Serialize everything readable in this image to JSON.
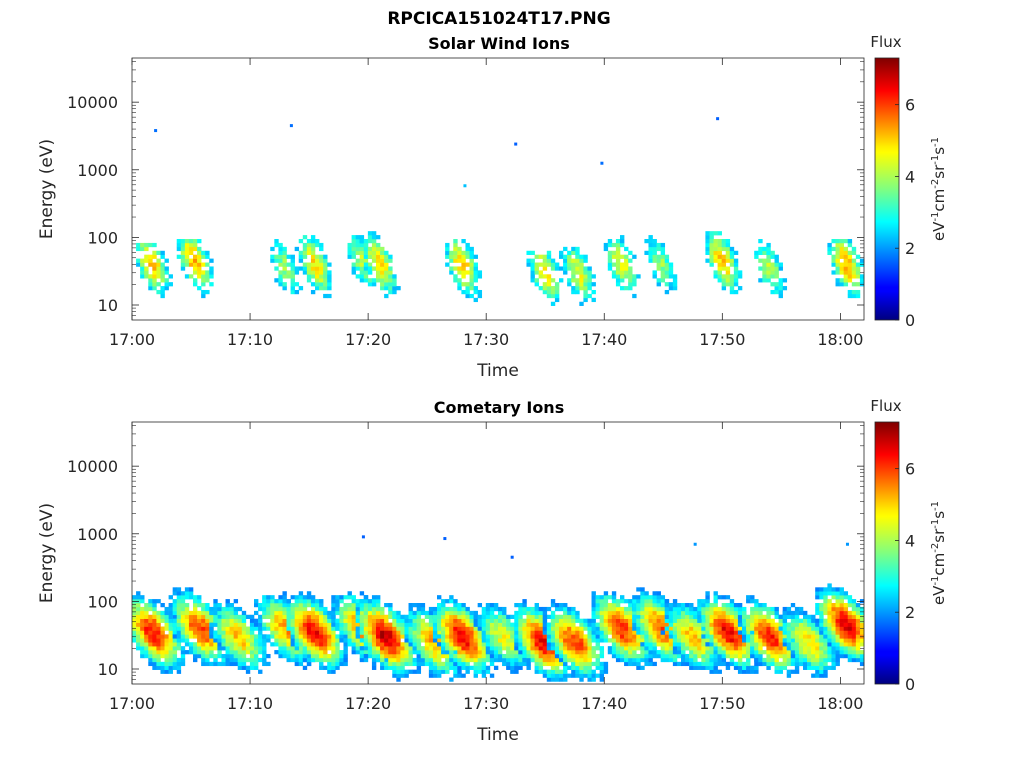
{
  "figure_title": "RPCICA151024T17.PNG",
  "colors": {
    "axes": "#262626",
    "colormap": "jet"
  },
  "chart_data": [
    {
      "type": "heatmap",
      "title": "Solar Wind Ions",
      "xlabel": "Time",
      "ylabel": "Energy (eV)",
      "yscale": "log",
      "ylim": [
        6,
        45000
      ],
      "xlim": [
        "17:00",
        "18:02"
      ],
      "xticks": [
        "17:00",
        "17:10",
        "17:20",
        "17:30",
        "17:40",
        "17:50",
        "18:00"
      ],
      "yticks": [
        "10",
        "100",
        "1000",
        "10000"
      ],
      "colorbar": {
        "label": "Flux",
        "unit": "eV-1cm-2sr-1s-1",
        "range": [
          0,
          7.3
        ],
        "ticks": [
          "0",
          "2",
          "4",
          "6"
        ]
      },
      "bursts": [
        {
          "t": 1.7,
          "e": 40,
          "peak": 5.0,
          "emin": 7,
          "emax": 80
        },
        {
          "t": 5.3,
          "e": 45,
          "peak": 5.2,
          "emin": 12,
          "emax": 90
        },
        {
          "t": 13.0,
          "e": 35,
          "peak": 3.8,
          "emin": 8,
          "emax": 120
        },
        {
          "t": 15.5,
          "e": 40,
          "peak": 4.8,
          "emin": 7,
          "emax": 110
        },
        {
          "t": 19.5,
          "e": 45,
          "peak": 4.0,
          "emin": 12,
          "emax": 200
        },
        {
          "t": 21.0,
          "e": 40,
          "peak": 4.8,
          "emin": 8,
          "emax": 120
        },
        {
          "t": 28.0,
          "e": 38,
          "peak": 5.0,
          "emin": 7,
          "emax": 110
        },
        {
          "t": 35.0,
          "e": 30,
          "peak": 4.8,
          "emin": 8,
          "emax": 60
        },
        {
          "t": 37.8,
          "e": 30,
          "peak": 4.4,
          "emin": 8,
          "emax": 70
        },
        {
          "t": 41.5,
          "e": 40,
          "peak": 4.5,
          "emin": 7,
          "emax": 200
        },
        {
          "t": 44.8,
          "e": 40,
          "peak": 3.8,
          "emin": 10,
          "emax": 300
        },
        {
          "t": 50.0,
          "e": 45,
          "peak": 5.0,
          "emin": 7,
          "emax": 120
        },
        {
          "t": 54.0,
          "e": 35,
          "peak": 4.0,
          "emin": 8,
          "emax": 110
        },
        {
          "t": 60.5,
          "e": 40,
          "peak": 5.2,
          "emin": 12,
          "emax": 100
        }
      ],
      "isolated": [
        {
          "t": 2.0,
          "e": 3800,
          "v": 1.7
        },
        {
          "t": 13.5,
          "e": 4500,
          "v": 1.7
        },
        {
          "t": 28.2,
          "e": 580,
          "v": 2.3
        },
        {
          "t": 32.5,
          "e": 2400,
          "v": 1.6
        },
        {
          "t": 39.8,
          "e": 1250,
          "v": 1.7
        },
        {
          "t": 49.6,
          "e": 5700,
          "v": 1.6
        }
      ]
    },
    {
      "type": "heatmap",
      "title": "Cometary Ions",
      "xlabel": "Time",
      "ylabel": "Energy (eV)",
      "yscale": "log",
      "ylim": [
        6,
        45000
      ],
      "xlim": [
        "17:00",
        "18:02"
      ],
      "xticks": [
        "17:00",
        "17:10",
        "17:20",
        "17:30",
        "17:40",
        "17:50",
        "18:00"
      ],
      "yticks": [
        "10",
        "100",
        "1000",
        "10000"
      ],
      "colorbar": {
        "label": "Flux",
        "unit": "eV-1cm-2sr-1s-1",
        "range": [
          0,
          7.3
        ],
        "ticks": [
          "0",
          "2",
          "4",
          "6"
        ]
      },
      "bursts": [
        {
          "t": 1.8,
          "e": 35,
          "peak": 6.3,
          "emin": 6,
          "emax": 500
        },
        {
          "t": 5.8,
          "e": 40,
          "peak": 6.0,
          "emin": 6,
          "emax": 600
        },
        {
          "t": 9.0,
          "e": 30,
          "peak": 5.0,
          "emin": 6,
          "emax": 400
        },
        {
          "t": 13.0,
          "e": 40,
          "peak": 5.3,
          "emin": 6,
          "emax": 500
        },
        {
          "t": 15.5,
          "e": 35,
          "peak": 6.5,
          "emin": 6,
          "emax": 450
        },
        {
          "t": 19.5,
          "e": 40,
          "peak": 5.5,
          "emin": 6,
          "emax": 800
        },
        {
          "t": 21.5,
          "e": 30,
          "peak": 6.8,
          "emin": 6,
          "emax": 600
        },
        {
          "t": 25.5,
          "e": 25,
          "peak": 5.2,
          "emin": 6,
          "emax": 300
        },
        {
          "t": 28.0,
          "e": 30,
          "peak": 6.6,
          "emin": 6,
          "emax": 600
        },
        {
          "t": 31.5,
          "e": 30,
          "peak": 4.5,
          "emin": 6,
          "emax": 200
        },
        {
          "t": 34.8,
          "e": 25,
          "peak": 6.5,
          "emin": 6,
          "emax": 400
        },
        {
          "t": 37.5,
          "e": 25,
          "peak": 6.0,
          "emin": 6,
          "emax": 300
        },
        {
          "t": 41.5,
          "e": 40,
          "peak": 6.2,
          "emin": 6,
          "emax": 500
        },
        {
          "t": 44.8,
          "e": 40,
          "peak": 5.8,
          "emin": 6,
          "emax": 700
        },
        {
          "t": 47.5,
          "e": 30,
          "peak": 5.0,
          "emin": 6,
          "emax": 500
        },
        {
          "t": 50.5,
          "e": 35,
          "peak": 6.5,
          "emin": 6,
          "emax": 600
        },
        {
          "t": 54.0,
          "e": 30,
          "peak": 6.3,
          "emin": 6,
          "emax": 400
        },
        {
          "t": 57.3,
          "e": 25,
          "peak": 4.8,
          "emin": 6,
          "emax": 150
        },
        {
          "t": 60.5,
          "e": 45,
          "peak": 6.6,
          "emin": 6,
          "emax": 600
        }
      ],
      "isolated": [
        {
          "t": 19.6,
          "e": 900,
          "v": 1.6
        },
        {
          "t": 26.5,
          "e": 850,
          "v": 1.6
        },
        {
          "t": 32.2,
          "e": 450,
          "v": 1.6
        },
        {
          "t": 47.7,
          "e": 700,
          "v": 2.0
        },
        {
          "t": 60.6,
          "e": 700,
          "v": 2.0
        }
      ]
    }
  ]
}
